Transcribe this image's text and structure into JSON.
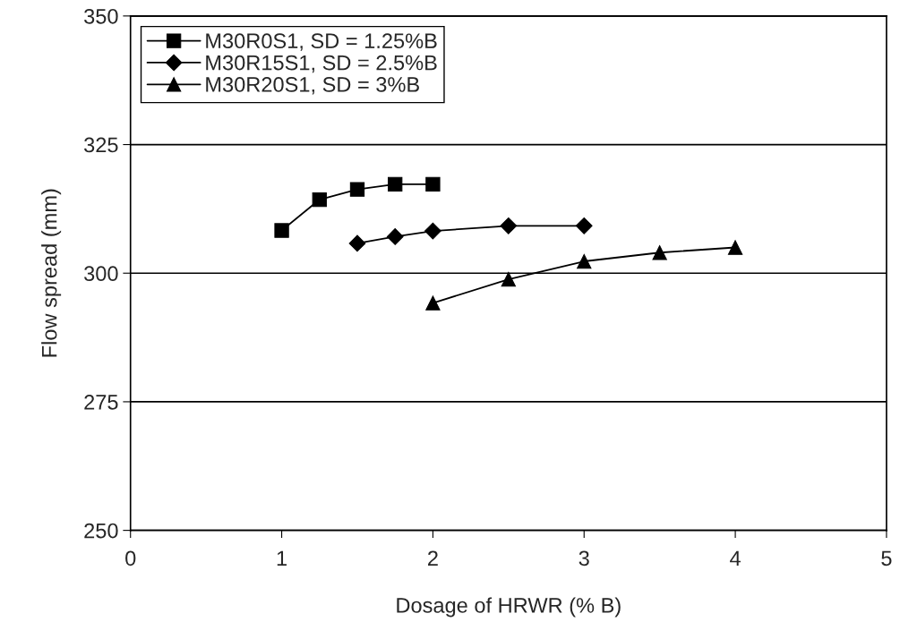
{
  "chart_data": {
    "type": "line",
    "xlabel": "Dosage of HRWR (% B)",
    "ylabel": "Flow spread (mm)",
    "xlim": [
      0,
      5
    ],
    "xticks": [
      0,
      1,
      2,
      3,
      4,
      5
    ],
    "ylim": [
      250,
      350
    ],
    "yticks": [
      250,
      275,
      300,
      325,
      350
    ],
    "grid": "y",
    "legend": "top left",
    "series": [
      {
        "name": "M30R0S1, SD = 1.25%B",
        "color": "#000000",
        "marker": "square",
        "x": [
          1,
          1.25,
          1.5,
          1.75,
          2
        ],
        "values": [
          308.3,
          314.3,
          316.3,
          317.3,
          317.3
        ]
      },
      {
        "name": "M30R15S1, SD = 2.5%B",
        "color": "#000000",
        "marker": "diamond",
        "x": [
          1.5,
          1.75,
          2,
          2.5,
          3
        ],
        "values": [
          305.8,
          307.1,
          308.2,
          309.2,
          309.2
        ]
      },
      {
        "name": "M30R20S1, SD = 3%B",
        "color": "#000000",
        "marker": "triangle",
        "x": [
          2,
          2.5,
          3,
          3.5,
          4
        ],
        "values": [
          294.2,
          298.8,
          302.3,
          304.0,
          305.0
        ]
      }
    ]
  }
}
